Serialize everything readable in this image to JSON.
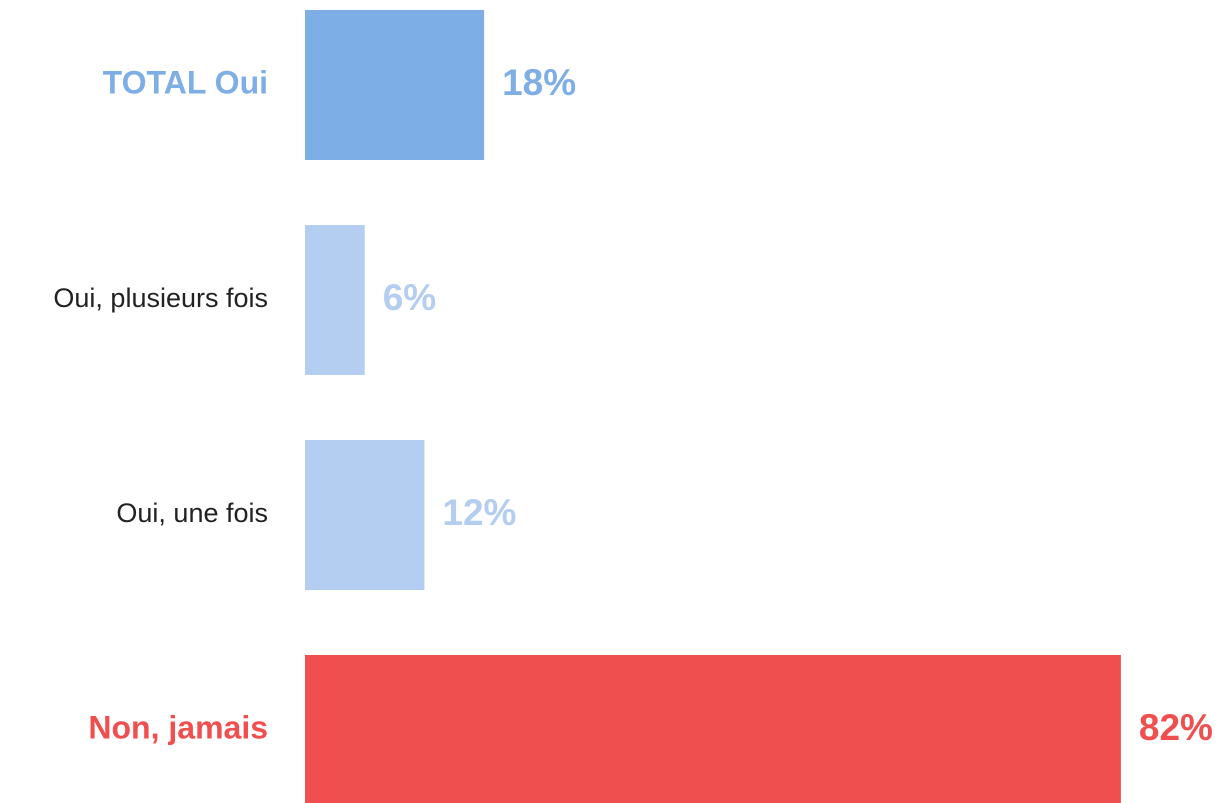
{
  "chart_data": {
    "type": "hbar",
    "categories": [
      "TOTAL Oui",
      "Oui, plusieurs fois",
      "Oui, une fois",
      "Non, jamais"
    ],
    "values": [
      18,
      6,
      12,
      82
    ],
    "value_labels": [
      "18%",
      "6%",
      "12%",
      "82%"
    ],
    "colors": [
      "#7eaee6",
      "#b3cef0",
      "#b3cef0",
      "#f04f4f"
    ],
    "category_label_colors": [
      "#7eaee6",
      "#222222",
      "#222222",
      "#f04f4f"
    ]
  }
}
